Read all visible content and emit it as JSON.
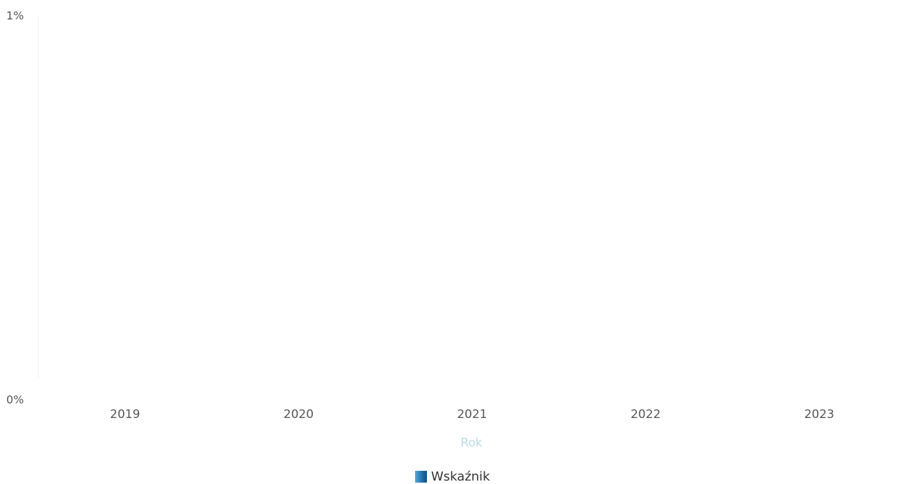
{
  "chart_data": {
    "type": "bar",
    "categories": [
      "2019",
      "2020",
      "2021",
      "2022",
      "2023"
    ],
    "series": [
      {
        "name": "Wskaźnik",
        "values": [
          0,
          0,
          0,
          0,
          0
        ]
      }
    ],
    "xlabel": "Rok",
    "ylabel": "",
    "ylim": [
      0,
      1
    ],
    "y_tick_labels": [
      "0%",
      "1%"
    ],
    "legend_position": "bottom-center",
    "grid": false
  },
  "colors": {
    "series": "#1f6fa8",
    "axis_title": "#b9dcea",
    "tick": "#555555"
  }
}
